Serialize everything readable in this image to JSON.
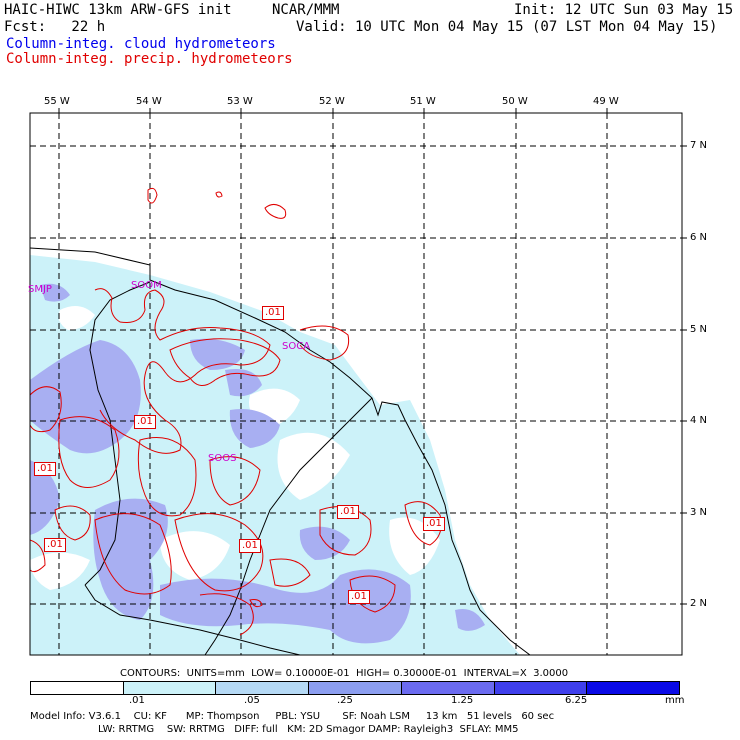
{
  "header": {
    "line1_left": "HAIC-HIWC 13km ARW-GFS init",
    "line1_mid": "NCAR/MMM",
    "line1_right": "Init: 12 UTC Sun 03 May 15",
    "line2_left": "Fcst:   22 h",
    "line2_right": "Valid: 10 UTC Mon 04 May 15 (07 LST Mon 04 May 15)",
    "field1": "Column-integ. cloud hydrometeors",
    "field2": "Column-integ. precip. hydrometeors"
  },
  "axes": {
    "lon_labels": [
      "55 W",
      "54 W",
      "53 W",
      "52 W",
      "51 W",
      "50 W",
      "49 W"
    ],
    "lat_labels": [
      "7 N",
      "6 N",
      "5 N",
      "4 N",
      "3 N",
      "2 N"
    ]
  },
  "stations": [
    "SMJP",
    "SOOM",
    "SOCA",
    "SOOS"
  ],
  "contour_labels": [
    ".01",
    ".01",
    ".01",
    ".01",
    ".01",
    ".01",
    ".01",
    ".01"
  ],
  "contour_info": "CONTOURS:  UNITS=mm  LOW= 0.10000E-01  HIGH= 0.30000E-01  INTERVAL=X  3.0000",
  "colorbar": {
    "colors": [
      "#ffffff",
      "#ccf2f9",
      "#b5d9f5",
      "#8c9ef0",
      "#6b6bf0",
      "#3f3fec",
      "#0a0ae6"
    ],
    "ticks": [
      ".01",
      ".05",
      ".25",
      "1.25",
      "6.25"
    ],
    "units": "mm"
  },
  "footer": {
    "line1": "Model Info: V3.6.1    CU: KF      MP: Thompson     PBL: YSU       SF: Noah LSM     13 km   51 levels   60 sec",
    "line2": "LW: RRTMG    SW: RRTMG   DIFF: full   KM: 2D Smagor DAMP: Rayleigh3  SFLAY: MM5"
  }
}
